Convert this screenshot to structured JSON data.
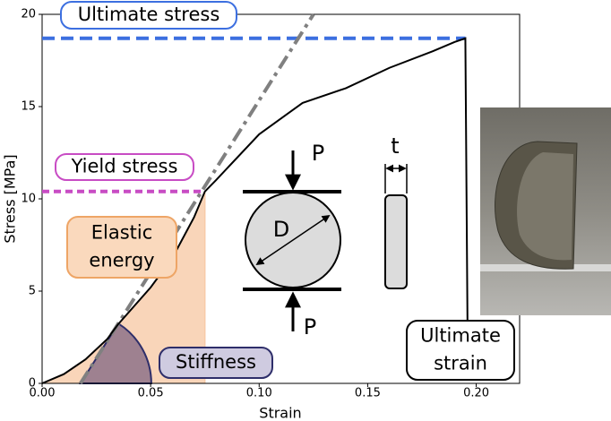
{
  "chart_data": {
    "type": "line",
    "x_label": "Strain",
    "y_label": "Stress [MPa]",
    "x": [
      0,
      0.01,
      0.02,
      0.03,
      0.035,
      0.05,
      0.06,
      0.07,
      0.075,
      0.08,
      0.1,
      0.12,
      0.14,
      0.16,
      0.18,
      0.19,
      0.195,
      0.196
    ],
    "values": [
      0,
      0.5,
      1.3,
      2.4,
      3.2,
      5.2,
      6.8,
      9.0,
      10.4,
      11.0,
      13.5,
      15.2,
      16.0,
      17.1,
      18.0,
      18.5,
      18.7,
      3.0
    ],
    "color": "#000000",
    "xlim": [
      0,
      0.22
    ],
    "ylim": [
      0,
      20
    ],
    "xticks": [
      {
        "value": 0,
        "label": "0.00"
      },
      {
        "value": 0.05,
        "label": "0.05"
      },
      {
        "value": 0.1,
        "label": "0.10"
      },
      {
        "value": 0.15,
        "label": "0.15"
      },
      {
        "value": 0.2,
        "label": "0.20"
      }
    ],
    "yticks": [
      0,
      5,
      10,
      15,
      20
    ],
    "ultimate_stress": 18.7,
    "ultimate_strain": 0.195,
    "yield_stress": 10.4,
    "yield_strain": 0.075,
    "stiffness_line": {
      "x": [
        0.0177,
        0.125
      ],
      "values": [
        0,
        20
      ],
      "color": "#808080"
    },
    "ultimate_stress_color": "#3c6fe0",
    "yield_stress_color": "#c84cc4",
    "elastic_energy_color": "#f8cba8",
    "annotations": {
      "ultimate_stress": [
        "Ultimate stress"
      ],
      "yield_stress": [
        "Yield stress"
      ],
      "elastic_energy": [
        "Elastic",
        "energy"
      ],
      "stiffness": [
        "Stiffness"
      ],
      "ultimate_strain": [
        "Ultimate",
        "strain"
      ]
    },
    "diagram_labels": {
      "top_load": "P",
      "diameter": "D",
      "bottom_load": "P",
      "thickness": "t"
    }
  }
}
